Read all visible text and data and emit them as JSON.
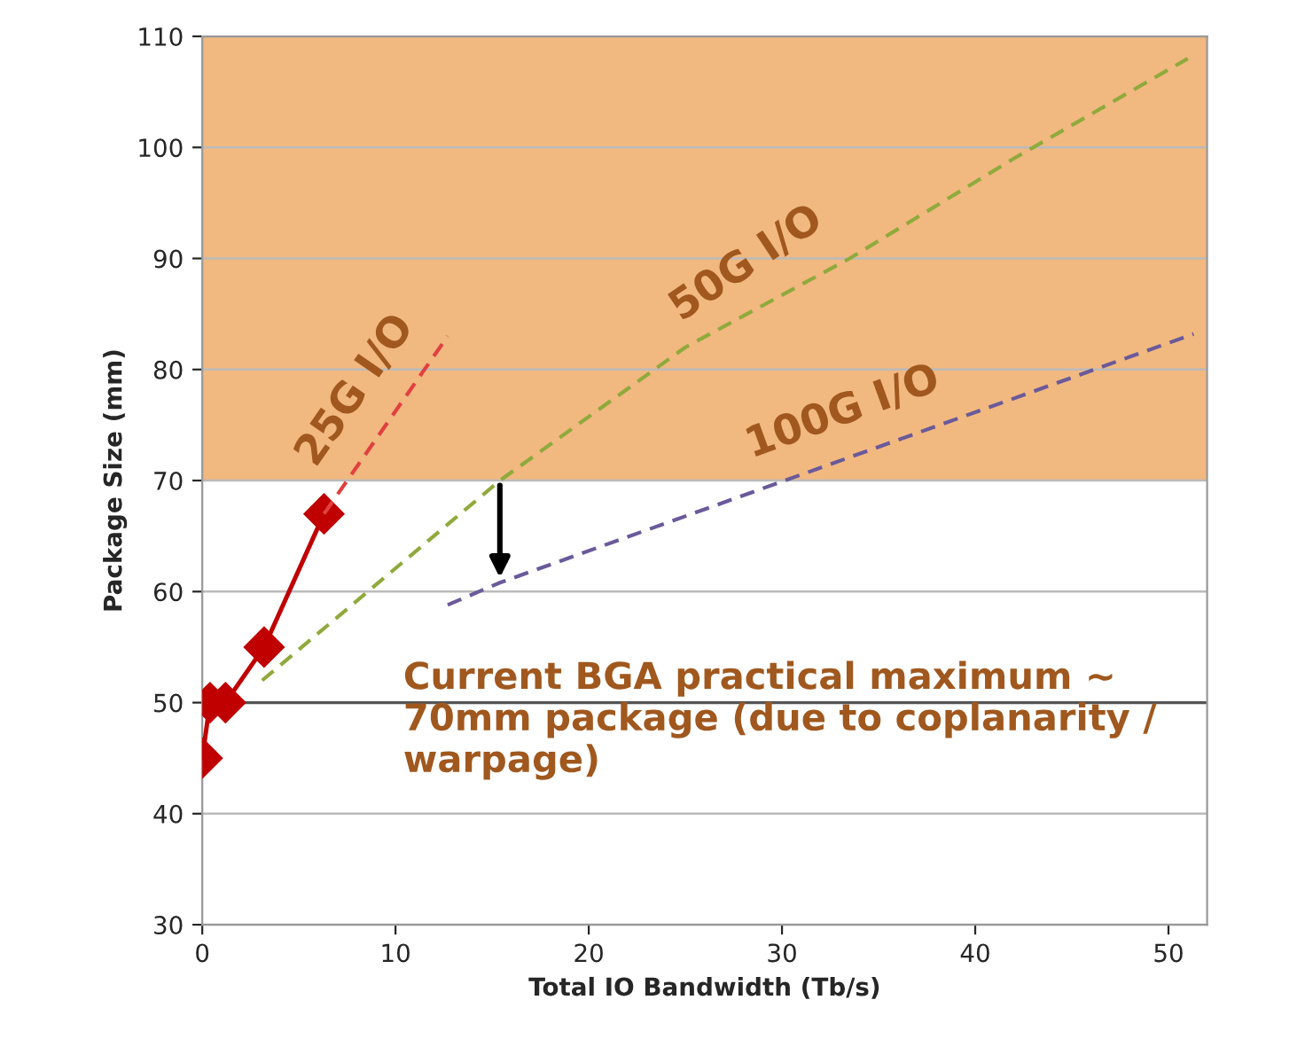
{
  "chart_data": {
    "type": "line",
    "xlabel": "Total IO Bandwidth (Tb/s)",
    "ylabel": "Package Size (mm)",
    "xlim": [
      0,
      52
    ],
    "xticks": [
      0,
      10,
      20,
      30,
      40,
      50
    ],
    "ylim": [
      30,
      110
    ],
    "yticks": [
      30,
      40,
      50,
      60,
      70,
      80,
      90,
      100,
      110
    ],
    "grid": "y",
    "series": [
      {
        "color": "#c00000",
        "x": [
          0,
          0.4,
          1.2,
          3.2,
          6.3
        ],
        "values": [
          45,
          50,
          50,
          55,
          67
        ],
        "marker": "diamond",
        "line_style": "solid"
      },
      {
        "name": "25G I/O",
        "color": "#e04040",
        "x": [
          6.3,
          12.7
        ],
        "values": [
          67,
          83
        ],
        "marker": "none",
        "line_style": "dashed"
      },
      {
        "name": "50G I/O",
        "color": "#8faa3c",
        "x": [
          3.1,
          15.4,
          25,
          33.5,
          42,
          51
        ],
        "values": [
          52,
          70,
          82,
          90,
          99,
          108
        ],
        "marker": "none",
        "line_style": "dashed"
      },
      {
        "name": "100G I/O",
        "color": "#6a5a9a",
        "x": [
          12.7,
          15.4,
          51.3
        ],
        "values": [
          58.8,
          60.8,
          83.2
        ],
        "marker": "none",
        "line_style": "dashed"
      }
    ],
    "ref_lines": [
      {
        "axis": "y",
        "value": 50,
        "color": "#555555",
        "line_style": "solid"
      }
    ],
    "bands": [
      {
        "axis": "y",
        "from": 70,
        "to": 110,
        "color": "#e8892c"
      }
    ],
    "annotations": [
      "Current BGA practical maximum ~ 70mm package (due to coplanarity / warpage)"
    ]
  }
}
